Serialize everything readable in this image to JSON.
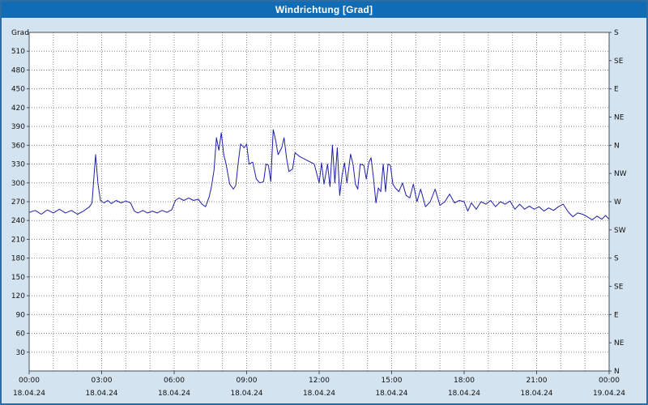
{
  "title_bar": {
    "title": "Windrichtung [Grad]"
  },
  "colors": {
    "titlebar_bg": "#0f6cb5",
    "titlebar_text": "#ffffff",
    "window_bg": "#d3e3ef",
    "window_border": "#2e6da4",
    "plot_bg": "#ffffff",
    "plot_border": "#44505c",
    "grid": "#8a8a8a",
    "line": "#1f1fa8",
    "tick_text": "#111111"
  },
  "chart_data": {
    "type": "line",
    "title": "Windrichtung [Grad]",
    "xlabel": "",
    "ylabel": "Grad",
    "x_min": 0,
    "x_max": 24,
    "y_min": 0,
    "y_max": 540,
    "y_tick_step": 30,
    "minor_x_step_hours": 1,
    "grid": "dotted",
    "legend": "none",
    "left_ticks": [
      30,
      60,
      90,
      120,
      150,
      180,
      210,
      240,
      270,
      300,
      330,
      360,
      390,
      420,
      450,
      480,
      510
    ],
    "right_axis": [
      {
        "value": 0,
        "label": "N"
      },
      {
        "value": 45,
        "label": "NE"
      },
      {
        "value": 90,
        "label": "E"
      },
      {
        "value": 135,
        "label": "SE"
      },
      {
        "value": 180,
        "label": "S"
      },
      {
        "value": 225,
        "label": "SW"
      },
      {
        "value": 270,
        "label": "W"
      },
      {
        "value": 315,
        "label": "NW"
      },
      {
        "value": 360,
        "label": "N"
      },
      {
        "value": 405,
        "label": "NE"
      },
      {
        "value": 450,
        "label": "E"
      },
      {
        "value": 495,
        "label": "SE"
      },
      {
        "value": 540,
        "label": "S"
      }
    ],
    "x_ticks": [
      {
        "hours": 0,
        "time": "00:00",
        "date": "18.04.24"
      },
      {
        "hours": 3,
        "time": "03:00",
        "date": "18.04.24"
      },
      {
        "hours": 6,
        "time": "06:00",
        "date": "18.04.24"
      },
      {
        "hours": 9,
        "time": "09:00",
        "date": "18.04.24"
      },
      {
        "hours": 12,
        "time": "12:00",
        "date": "18.04.24"
      },
      {
        "hours": 15,
        "time": "15:00",
        "date": "18.04.24"
      },
      {
        "hours": 18,
        "time": "18:00",
        "date": "18.04.24"
      },
      {
        "hours": 21,
        "time": "21:00",
        "date": "18.04.24"
      },
      {
        "hours": 24,
        "time": "00:00",
        "date": "19.04.24"
      }
    ],
    "series": [
      {
        "name": "Windrichtung",
        "color": "#1f1fa8",
        "points": [
          [
            0,
            253
          ],
          [
            0.25,
            256
          ],
          [
            0.5,
            250
          ],
          [
            0.75,
            257
          ],
          [
            1,
            252
          ],
          [
            1.25,
            258
          ],
          [
            1.5,
            252
          ],
          [
            1.75,
            256
          ],
          [
            2,
            250
          ],
          [
            2.25,
            255
          ],
          [
            2.5,
            262
          ],
          [
            2.6,
            268
          ],
          [
            2.75,
            345
          ],
          [
            2.85,
            298
          ],
          [
            2.95,
            272
          ],
          [
            3.1,
            268
          ],
          [
            3.25,
            272
          ],
          [
            3.4,
            267
          ],
          [
            3.6,
            272
          ],
          [
            3.8,
            268
          ],
          [
            4,
            271
          ],
          [
            4.2,
            268
          ],
          [
            4.35,
            255
          ],
          [
            4.5,
            252
          ],
          [
            4.7,
            256
          ],
          [
            4.9,
            252
          ],
          [
            5.1,
            255
          ],
          [
            5.3,
            252
          ],
          [
            5.5,
            256
          ],
          [
            5.7,
            253
          ],
          [
            5.9,
            257
          ],
          [
            6.05,
            272
          ],
          [
            6.2,
            276
          ],
          [
            6.4,
            272
          ],
          [
            6.6,
            276
          ],
          [
            6.8,
            272
          ],
          [
            7,
            274
          ],
          [
            7.15,
            266
          ],
          [
            7.3,
            262
          ],
          [
            7.45,
            278
          ],
          [
            7.55,
            295
          ],
          [
            7.65,
            320
          ],
          [
            7.75,
            372
          ],
          [
            7.85,
            352
          ],
          [
            7.95,
            380
          ],
          [
            8.05,
            345
          ],
          [
            8.15,
            330
          ],
          [
            8.3,
            298
          ],
          [
            8.45,
            290
          ],
          [
            8.55,
            296
          ],
          [
            8.65,
            332
          ],
          [
            8.75,
            362
          ],
          [
            8.9,
            356
          ],
          [
            9,
            362
          ],
          [
            9.1,
            330
          ],
          [
            9.25,
            333
          ],
          [
            9.4,
            306
          ],
          [
            9.55,
            300
          ],
          [
            9.7,
            302
          ],
          [
            9.8,
            330
          ],
          [
            9.9,
            328
          ],
          [
            10,
            302
          ],
          [
            10.1,
            385
          ],
          [
            10.2,
            368
          ],
          [
            10.3,
            345
          ],
          [
            10.45,
            356
          ],
          [
            10.55,
            372
          ],
          [
            10.65,
            340
          ],
          [
            10.75,
            318
          ],
          [
            10.9,
            322
          ],
          [
            11,
            348
          ],
          [
            11.2,
            342
          ],
          [
            11.4,
            338
          ],
          [
            11.6,
            334
          ],
          [
            11.8,
            330
          ],
          [
            12,
            300
          ],
          [
            12.1,
            332
          ],
          [
            12.2,
            298
          ],
          [
            12.35,
            330
          ],
          [
            12.45,
            294
          ],
          [
            12.55,
            360
          ],
          [
            12.65,
            300
          ],
          [
            12.75,
            356
          ],
          [
            12.85,
            280
          ],
          [
            12.95,
            312
          ],
          [
            13.05,
            332
          ],
          [
            13.15,
            300
          ],
          [
            13.3,
            346
          ],
          [
            13.4,
            330
          ],
          [
            13.5,
            298
          ],
          [
            13.6,
            290
          ],
          [
            13.7,
            330
          ],
          [
            13.85,
            328
          ],
          [
            13.95,
            306
          ],
          [
            14.05,
            332
          ],
          [
            14.15,
            340
          ],
          [
            14.25,
            308
          ],
          [
            14.35,
            268
          ],
          [
            14.45,
            292
          ],
          [
            14.55,
            286
          ],
          [
            14.65,
            330
          ],
          [
            14.75,
            286
          ],
          [
            14.85,
            330
          ],
          [
            14.95,
            328
          ],
          [
            15.05,
            298
          ],
          [
            15.15,
            292
          ],
          [
            15.3,
            286
          ],
          [
            15.45,
            300
          ],
          [
            15.6,
            280
          ],
          [
            15.75,
            276
          ],
          [
            15.9,
            298
          ],
          [
            16.05,
            270
          ],
          [
            16.2,
            290
          ],
          [
            16.4,
            262
          ],
          [
            16.6,
            270
          ],
          [
            16.8,
            290
          ],
          [
            17,
            264
          ],
          [
            17.2,
            270
          ],
          [
            17.4,
            282
          ],
          [
            17.6,
            268
          ],
          [
            17.8,
            272
          ],
          [
            18,
            270
          ],
          [
            18.15,
            255
          ],
          [
            18.3,
            268
          ],
          [
            18.5,
            258
          ],
          [
            18.7,
            270
          ],
          [
            18.9,
            266
          ],
          [
            19.1,
            272
          ],
          [
            19.3,
            262
          ],
          [
            19.5,
            270
          ],
          [
            19.7,
            266
          ],
          [
            19.9,
            271
          ],
          [
            20.1,
            258
          ],
          [
            20.3,
            266
          ],
          [
            20.5,
            258
          ],
          [
            20.7,
            263
          ],
          [
            20.9,
            258
          ],
          [
            21.1,
            262
          ],
          [
            21.3,
            255
          ],
          [
            21.5,
            260
          ],
          [
            21.7,
            256
          ],
          [
            21.9,
            262
          ],
          [
            22.1,
            266
          ],
          [
            22.3,
            254
          ],
          [
            22.5,
            246
          ],
          [
            22.7,
            252
          ],
          [
            22.9,
            250
          ],
          [
            23.1,
            246
          ],
          [
            23.3,
            241
          ],
          [
            23.5,
            247
          ],
          [
            23.7,
            242
          ],
          [
            23.85,
            248
          ],
          [
            24,
            242
          ]
        ]
      }
    ]
  }
}
